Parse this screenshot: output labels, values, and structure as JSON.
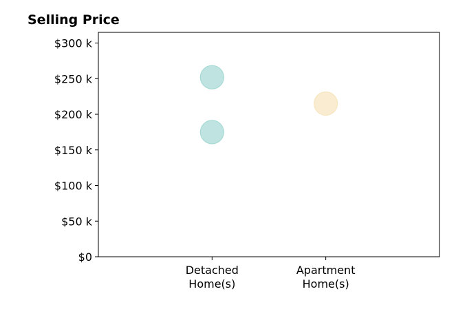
{
  "chart_data": {
    "type": "scatter",
    "title": "Selling Price",
    "xlabel": "",
    "ylabel": "",
    "categories": [
      [
        "Detached",
        "Home(s)"
      ],
      [
        "Apartment",
        "Home(s)"
      ]
    ],
    "y_ticks": [
      {
        "value": 0,
        "label": "$0"
      },
      {
        "value": 50000,
        "label": "$50 k"
      },
      {
        "value": 100000,
        "label": "$100 k"
      },
      {
        "value": 150000,
        "label": "$150 k"
      },
      {
        "value": 200000,
        "label": "$200 k"
      },
      {
        "value": 250000,
        "label": "$250 k"
      },
      {
        "value": 300000,
        "label": "$300 k"
      }
    ],
    "ylim": [
      0,
      315000
    ],
    "xlim": [
      0,
      3
    ],
    "grid": false,
    "points": [
      {
        "category_index": 0,
        "y": 252000,
        "color": "#a8dad5"
      },
      {
        "category_index": 0,
        "y": 175000,
        "color": "#a8dad5"
      },
      {
        "category_index": 1,
        "y": 215000,
        "color": "#f7e6c0"
      }
    ]
  }
}
